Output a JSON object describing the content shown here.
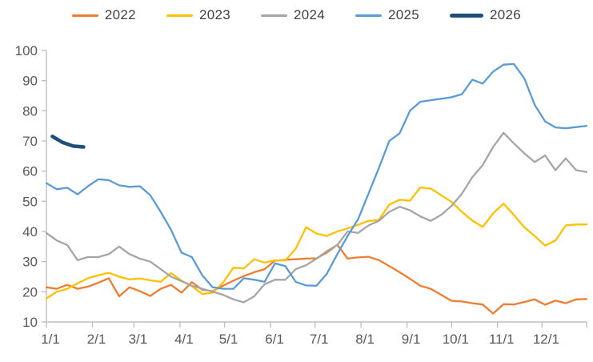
{
  "chart_data": {
    "type": "line",
    "title": "",
    "xlabel": "",
    "ylabel": "",
    "legend": {
      "position": "top",
      "entries": [
        "2022",
        "2023",
        "2024",
        "2025",
        "2026"
      ]
    },
    "y_axis": {
      "min": 10,
      "max": 100,
      "step": 10,
      "tick_labels": [
        "10",
        "20",
        "30",
        "40",
        "50",
        "60",
        "70",
        "80",
        "90",
        "100"
      ],
      "gridlines": false
    },
    "x_axis": {
      "tick_labels": [
        "1/1",
        "2/1",
        "3/1",
        "4/1",
        "5/1",
        "6/1",
        "7/1",
        "8/1",
        "9/1",
        "10/1",
        "11/1",
        "12/1"
      ],
      "tick_days": [
        0,
        31,
        59,
        90,
        120,
        151,
        181,
        212,
        243,
        273,
        304,
        334
      ],
      "domain_days": [
        0,
        364
      ],
      "end_tick_day": 364
    },
    "series": [
      {
        "name": "2022",
        "color": "#ED7D31",
        "line_width": 2.3,
        "x_start_day": 0,
        "x_step_days": 7,
        "values": [
          21.5,
          21,
          22.3,
          21,
          21.7,
          23,
          24.5,
          18.5,
          21.5,
          20.2,
          18.6,
          21,
          22.3,
          19.7,
          23.2,
          20.7,
          20.2,
          22,
          23.7,
          25.2,
          26.5,
          27.5,
          30.3,
          30.6,
          30.8,
          31,
          31.1,
          33,
          35.6,
          31,
          31.4,
          31.6,
          30.5,
          28.5,
          26.5,
          24.3,
          22,
          21,
          19,
          17,
          16.8,
          16.2,
          15.8,
          12.8,
          15.9,
          15.8,
          16.6,
          17.5,
          15.7,
          17.1,
          16.2,
          17.5,
          17.6
        ]
      },
      {
        "name": "2023",
        "color": "#FFC000",
        "line_width": 2.3,
        "x_start_day": 0,
        "x_step_days": 7,
        "values": [
          17.8,
          20,
          21,
          22.8,
          24.5,
          25.5,
          26.3,
          25,
          24.1,
          24.4,
          23.8,
          23.3,
          26.2,
          23.7,
          21.9,
          19.3,
          19.7,
          23,
          28,
          27.7,
          30.8,
          29.7,
          30.4,
          30.4,
          34.3,
          41.4,
          39.3,
          38.5,
          40,
          41,
          42.2,
          43.5,
          43.8,
          48.9,
          50.5,
          50.2,
          54.6,
          54.2,
          52,
          49.8,
          46.5,
          43.6,
          41.5,
          46,
          49.2,
          45.5,
          41.4,
          38.5,
          35.3,
          37,
          42,
          42.3,
          42.3
        ]
      },
      {
        "name": "2024",
        "color": "#A5A5A5",
        "line_width": 2.3,
        "x_start_day": 0,
        "x_step_days": 7,
        "values": [
          39.5,
          37,
          35.5,
          30.5,
          31.5,
          31.5,
          32.5,
          35,
          32.5,
          31,
          30,
          27.5,
          25,
          23.5,
          22,
          21,
          20,
          19,
          17.5,
          16.5,
          18.5,
          22.5,
          24,
          24,
          27.5,
          28.8,
          31,
          33.5,
          35.5,
          40,
          39.5,
          42,
          43.5,
          46.5,
          48.2,
          47,
          45,
          43.5,
          45.5,
          48.5,
          52.5,
          58,
          62,
          68,
          72.7,
          69.2,
          65.9,
          63,
          65.2,
          60.3,
          64.2,
          60.3,
          59.7
        ]
      },
      {
        "name": "2025",
        "color": "#5B9BD5",
        "line_width": 2.3,
        "x_start_day": 0,
        "x_step_days": 7,
        "values": [
          56,
          54,
          54.5,
          52.3,
          55,
          57.3,
          57,
          55.3,
          54.8,
          55,
          52,
          46.5,
          40.5,
          33,
          31.5,
          25.5,
          21.5,
          21,
          21,
          24.5,
          24,
          23.3,
          29.4,
          28.5,
          23.3,
          22.1,
          22,
          26,
          32.5,
          38.5,
          44,
          52.5,
          61,
          70,
          72.5,
          80,
          83,
          83.5,
          84,
          84.5,
          85.5,
          90.3,
          89,
          93,
          95.3,
          95.5,
          90.8,
          82,
          76.5,
          74.5,
          74.2,
          74.6,
          75
        ]
      },
      {
        "name": "2026",
        "color": "#1F4E79",
        "line_width": 4.5,
        "x_start_day": 4,
        "x_step_days": 7,
        "values": [
          71.5,
          69.5,
          68.3,
          68
        ]
      }
    ]
  },
  "style": {
    "axis_color": "#BFBFBF",
    "tick_label_color": "#595959",
    "legend_label_color": "#404040",
    "background": "#FFFFFF"
  }
}
